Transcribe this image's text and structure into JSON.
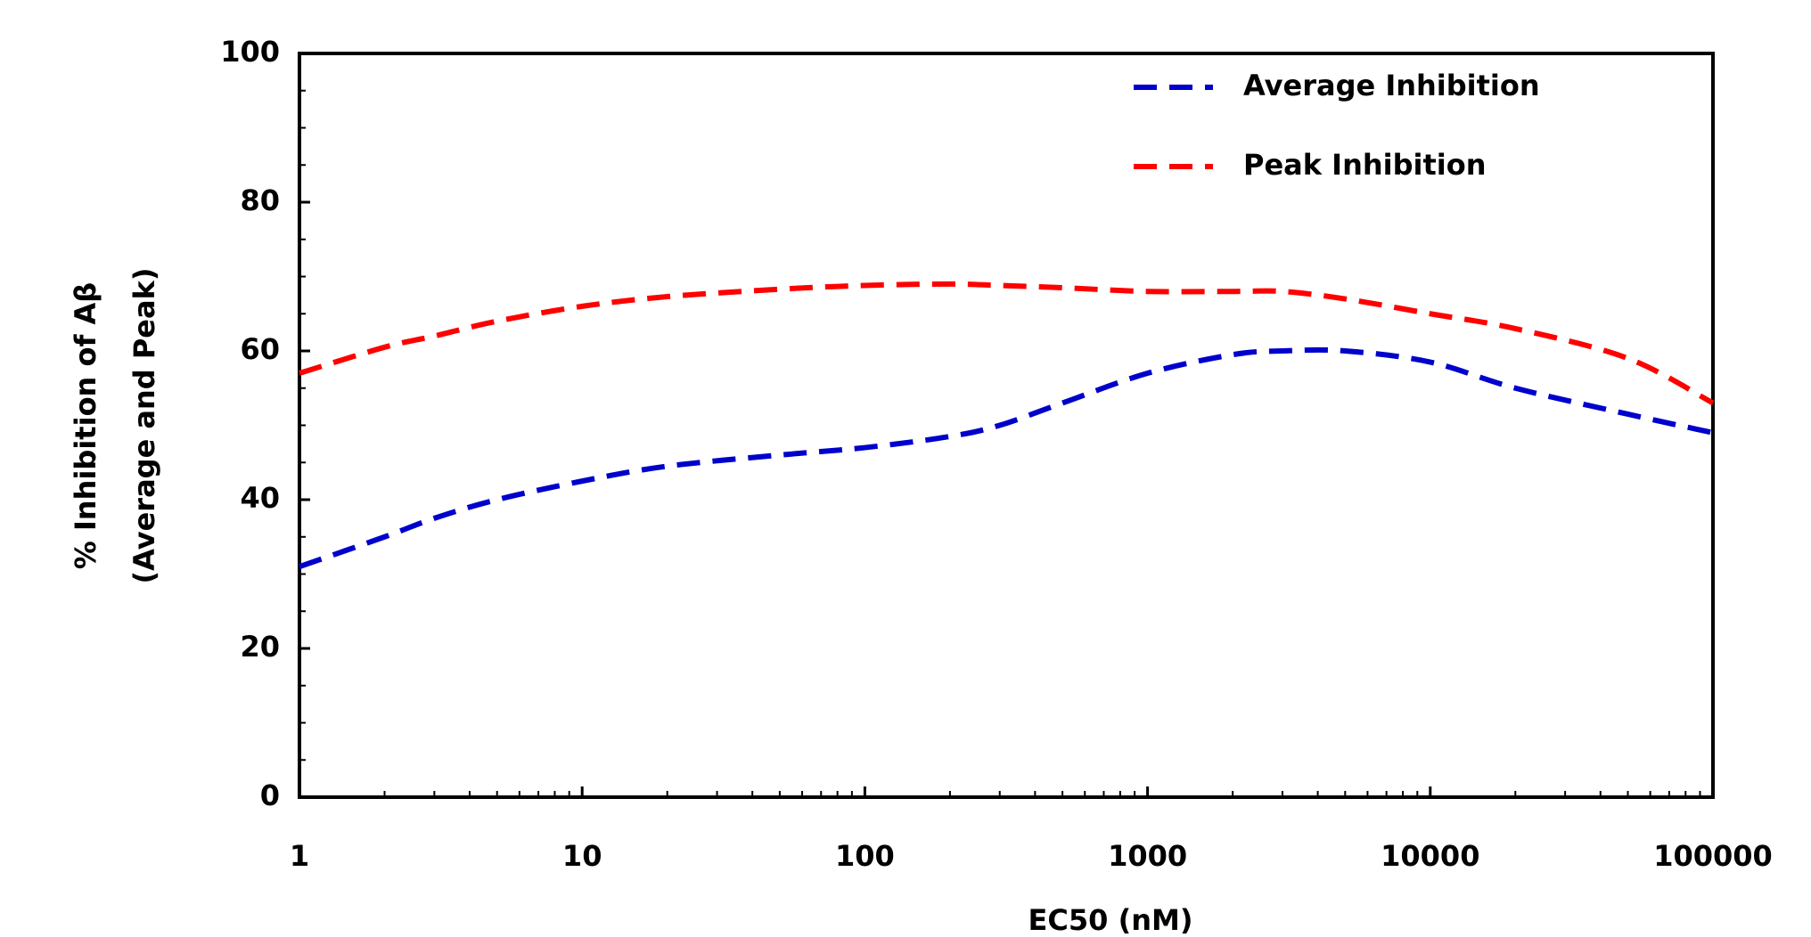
{
  "chart_data": {
    "type": "line",
    "x": [
      1,
      2,
      3,
      5,
      10,
      20,
      50,
      100,
      200,
      300,
      500,
      1000,
      2000,
      3000,
      5000,
      10000,
      20000,
      50000,
      100000
    ],
    "series": [
      {
        "name": "Average Inhibition",
        "color": "#0000cc",
        "values": [
          31,
          35,
          37.5,
          40,
          42.5,
          44.5,
          46,
          47,
          48.5,
          50,
          53,
          57,
          59.5,
          60,
          60,
          58.5,
          55,
          51.5,
          49
        ]
      },
      {
        "name": "Peak Inhibition",
        "color": "#ff0000",
        "values": [
          57,
          60.5,
          62,
          64,
          66,
          67.3,
          68.3,
          68.8,
          69,
          68.8,
          68.5,
          68,
          68,
          68,
          67,
          65,
          63,
          59,
          53
        ]
      }
    ],
    "xlabel": "EC50 (nM)",
    "ylabel": [
      "% Inhibition of Aβ",
      "(Average and Peak)"
    ],
    "xscale": "log",
    "xlim": [
      1,
      100000
    ],
    "xticks": [
      1,
      10,
      100,
      1000,
      10000,
      100000
    ],
    "ylim": [
      0,
      100
    ],
    "yticks": [
      0,
      20,
      40,
      60,
      80,
      100
    ],
    "legend": "upper-right"
  }
}
